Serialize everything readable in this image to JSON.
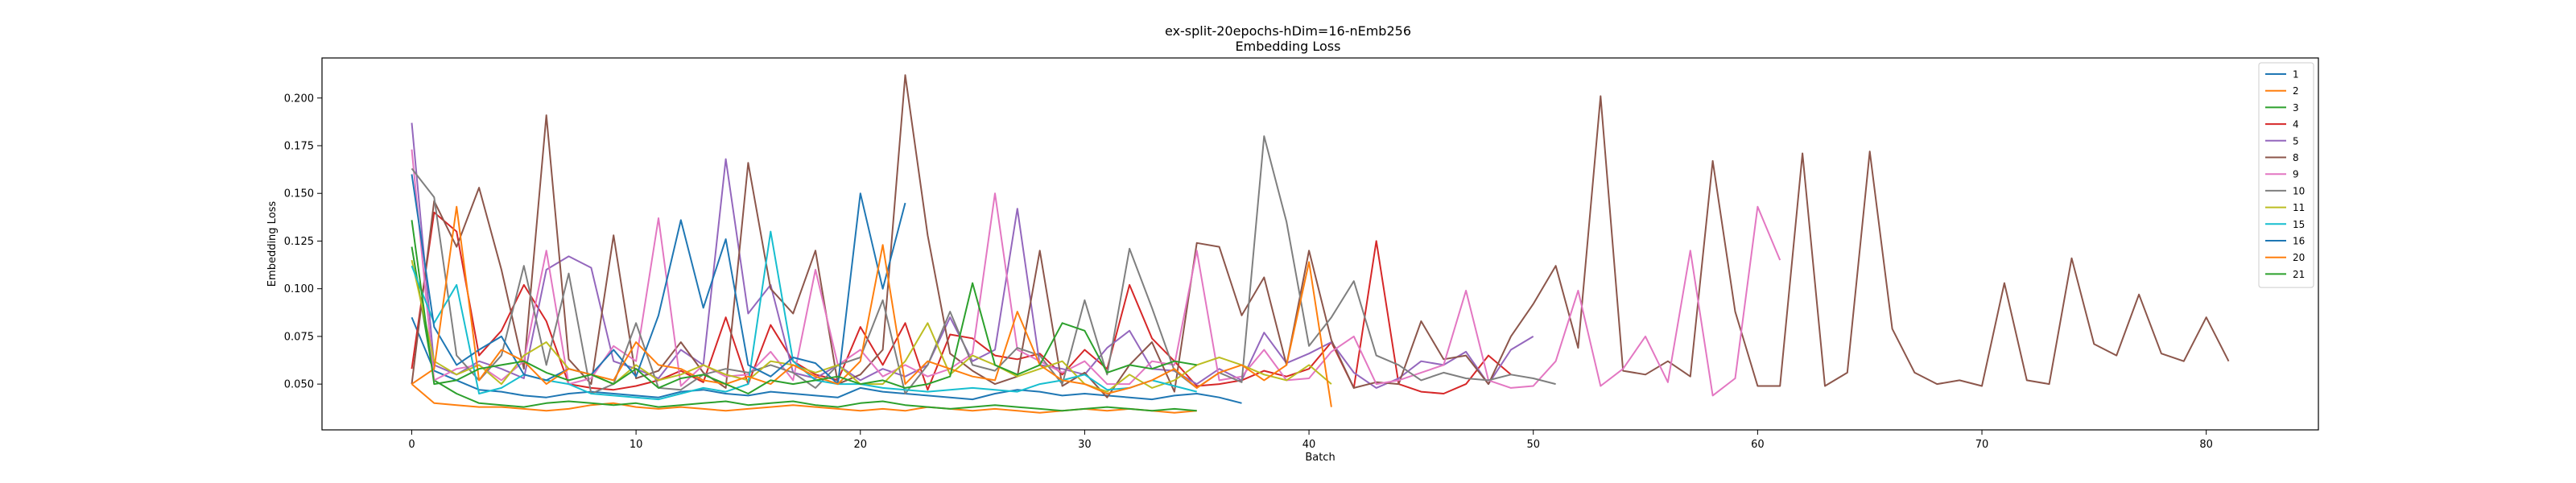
{
  "chart_data": {
    "type": "line",
    "title": "ex-split-20epochs-hDim=16-nEmb256",
    "subtitle": "Embedding Loss",
    "xlabel": "Batch",
    "ylabel": "Embedding Loss",
    "xlim": [
      -4,
      85
    ],
    "ylim": [
      0.026,
      0.221
    ],
    "xticks": [
      "0",
      "10",
      "20",
      "30",
      "40",
      "50",
      "60",
      "70",
      "80"
    ],
    "yticks": [
      "0.050",
      "0.075",
      "0.100",
      "0.125",
      "0.150",
      "0.175",
      "0.200"
    ],
    "grid": false,
    "legend_position": "top-right",
    "series": [
      {
        "name": "1",
        "color": "#1f77b4",
        "values": [
          0.085,
          0.057,
          0.052,
          0.047,
          0.046,
          0.044,
          0.043,
          0.045,
          0.046,
          0.045,
          0.044,
          0.043,
          0.046,
          0.047,
          0.045,
          0.044,
          0.046,
          0.045,
          0.044,
          0.043,
          0.048,
          0.046,
          0.045,
          0.044,
          0.043,
          0.042,
          0.045,
          0.047,
          0.046,
          0.044,
          0.045,
          0.044,
          0.043,
          0.042,
          0.044,
          0.045,
          0.043,
          0.04
        ]
      },
      {
        "name": "2",
        "color": "#ff7f0e",
        "values": [
          0.05,
          0.04,
          0.039,
          0.038,
          0.038,
          0.037,
          0.036,
          0.037,
          0.039,
          0.04,
          0.038,
          0.037,
          0.038,
          0.037,
          0.036,
          0.037,
          0.038,
          0.039,
          0.038,
          0.037,
          0.036,
          0.037,
          0.036,
          0.038,
          0.037,
          0.036,
          0.037,
          0.036,
          0.035,
          0.036,
          0.037,
          0.036,
          0.037,
          0.036,
          0.035,
          0.036
        ]
      },
      {
        "name": "3",
        "color": "#2ca02c",
        "values": [
          0.122,
          0.052,
          0.045,
          0.04,
          0.039,
          0.038,
          0.04,
          0.041,
          0.04,
          0.039,
          0.04,
          0.038,
          0.039,
          0.04,
          0.041,
          0.039,
          0.04,
          0.041,
          0.039,
          0.038,
          0.04,
          0.041,
          0.039,
          0.038,
          0.037,
          0.038,
          0.039,
          0.038,
          0.037,
          0.036,
          0.037,
          0.038,
          0.037,
          0.036,
          0.037,
          0.036
        ]
      },
      {
        "name": "4",
        "color": "#d62728",
        "values": [
          0.058,
          0.14,
          0.13,
          0.065,
          0.078,
          0.102,
          0.083,
          0.05,
          0.048,
          0.047,
          0.049,
          0.052,
          0.057,
          0.051,
          0.085,
          0.05,
          0.081,
          0.062,
          0.055,
          0.052,
          0.08,
          0.06,
          0.082,
          0.047,
          0.076,
          0.074,
          0.065,
          0.063,
          0.066,
          0.055,
          0.068,
          0.058,
          0.102,
          0.074,
          0.062,
          0.049,
          0.05,
          0.052,
          0.057,
          0.054,
          0.058,
          0.072,
          0.048,
          0.125,
          0.05,
          0.046,
          0.045,
          0.05,
          0.065,
          0.055
        ]
      },
      {
        "name": "5",
        "color": "#9467bd",
        "values": [
          0.187,
          0.06,
          0.055,
          0.062,
          0.058,
          0.053,
          0.11,
          0.117,
          0.111,
          0.062,
          0.058,
          0.053,
          0.068,
          0.06,
          0.168,
          0.087,
          0.102,
          0.056,
          0.053,
          0.06,
          0.052,
          0.058,
          0.054,
          0.06,
          0.085,
          0.062,
          0.068,
          0.142,
          0.06,
          0.058,
          0.055,
          0.069,
          0.078,
          0.058,
          0.057,
          0.05,
          0.058,
          0.052,
          0.077,
          0.061,
          0.066,
          0.072,
          0.056,
          0.048,
          0.053,
          0.062,
          0.06,
          0.067,
          0.05,
          0.068,
          0.075
        ]
      },
      {
        "name": "8",
        "color": "#8c564b",
        "values": [
          0.05,
          0.146,
          0.122,
          0.153,
          0.11,
          0.058,
          0.191,
          0.063,
          0.05,
          0.128,
          0.053,
          0.057,
          0.072,
          0.056,
          0.048,
          0.166,
          0.1,
          0.087,
          0.12,
          0.05,
          0.055,
          0.068,
          0.212,
          0.128,
          0.066,
          0.057,
          0.05,
          0.054,
          0.12,
          0.049,
          0.056,
          0.043,
          0.06,
          0.072,
          0.046,
          0.124,
          0.122,
          0.086,
          0.106,
          0.06,
          0.12,
          0.073,
          0.048,
          0.051,
          0.05,
          0.083,
          0.063,
          0.065,
          0.05,
          0.075,
          0.092,
          0.112,
          0.069,
          0.201,
          0.057,
          0.055,
          0.062,
          0.054,
          0.167,
          0.088,
          0.049,
          0.049,
          0.171,
          0.049,
          0.056,
          0.172,
          0.079,
          0.056,
          0.05,
          0.052,
          0.049,
          0.103,
          0.052,
          0.05,
          0.116,
          0.071,
          0.065,
          0.097,
          0.066,
          0.062,
          0.085,
          0.062
        ]
      },
      {
        "name": "9",
        "color": "#e377c2",
        "values": [
          0.173,
          0.052,
          0.058,
          0.06,
          0.052,
          0.062,
          0.12,
          0.05,
          0.053,
          0.07,
          0.062,
          0.137,
          0.049,
          0.06,
          0.054,
          0.055,
          0.067,
          0.052,
          0.11,
          0.06,
          0.068,
          0.054,
          0.06,
          0.054,
          0.058,
          0.066,
          0.15,
          0.068,
          0.062,
          0.056,
          0.062,
          0.05,
          0.05,
          0.062,
          0.06,
          0.12,
          0.052,
          0.054,
          0.068,
          0.052,
          0.053,
          0.067,
          0.075,
          0.05,
          0.052,
          0.056,
          0.06,
          0.099,
          0.052,
          0.048,
          0.049,
          0.062,
          0.099,
          0.049,
          0.058,
          0.075,
          0.051,
          0.12,
          0.044,
          0.053,
          0.143,
          0.115
        ]
      },
      {
        "name": "10",
        "color": "#7f7f7f",
        "values": [
          0.163,
          0.148,
          0.065,
          0.052,
          0.065,
          0.112,
          0.06,
          0.108,
          0.045,
          0.05,
          0.082,
          0.048,
          0.047,
          0.055,
          0.058,
          0.056,
          0.06,
          0.056,
          0.048,
          0.06,
          0.064,
          0.094,
          0.045,
          0.06,
          0.088,
          0.06,
          0.057,
          0.069,
          0.065,
          0.05,
          0.094,
          0.055,
          0.121,
          0.09,
          0.057,
          0.048,
          0.056,
          0.051,
          0.18,
          0.135,
          0.07,
          0.085,
          0.104,
          0.065,
          0.06,
          0.052,
          0.056,
          0.053,
          0.052,
          0.055,
          0.053,
          0.05
        ]
      },
      {
        "name": "11",
        "color": "#bcbd22",
        "values": [
          0.115,
          0.062,
          0.055,
          0.06,
          0.05,
          0.065,
          0.072,
          0.058,
          0.055,
          0.05,
          0.06,
          0.052,
          0.055,
          0.06,
          0.055,
          0.052,
          0.062,
          0.06,
          0.056,
          0.06,
          0.05,
          0.05,
          0.062,
          0.082,
          0.055,
          0.065,
          0.06,
          0.054,
          0.058,
          0.062,
          0.05,
          0.046,
          0.055,
          0.048,
          0.052,
          0.06,
          0.064,
          0.06,
          0.055,
          0.052,
          0.06,
          0.05
        ]
      },
      {
        "name": "15",
        "color": "#17becf",
        "values": [
          0.112,
          0.082,
          0.102,
          0.045,
          0.048,
          0.055,
          0.052,
          0.05,
          0.045,
          0.044,
          0.043,
          0.042,
          0.045,
          0.048,
          0.046,
          0.05,
          0.13,
          0.062,
          0.052,
          0.05,
          0.05,
          0.048,
          0.047,
          0.046,
          0.047,
          0.048,
          0.047,
          0.046,
          0.05,
          0.052,
          0.055,
          0.047,
          0.048,
          0.052,
          0.049,
          0.046
        ]
      },
      {
        "name": "16",
        "color": "#1f77b4",
        "values": [
          0.16,
          0.08,
          0.06,
          0.068,
          0.075,
          0.055,
          0.052,
          0.058,
          0.055,
          0.068,
          0.054,
          0.086,
          0.136,
          0.09,
          0.126,
          0.06,
          0.054,
          0.064,
          0.061,
          0.05,
          0.15,
          0.1,
          0.145
        ]
      },
      {
        "name": "20",
        "color": "#ff7f0e",
        "values": [
          0.05,
          0.058,
          0.143,
          0.052,
          0.068,
          0.062,
          0.05,
          0.058,
          0.055,
          0.052,
          0.072,
          0.06,
          0.058,
          0.052,
          0.05,
          0.054,
          0.05,
          0.06,
          0.054,
          0.05,
          0.062,
          0.123,
          0.05,
          0.062,
          0.058,
          0.054,
          0.052,
          0.088,
          0.06,
          0.052,
          0.05,
          0.045,
          0.048,
          0.052,
          0.058,
          0.048,
          0.056,
          0.06,
          0.052,
          0.06,
          0.114,
          0.038
        ]
      },
      {
        "name": "21",
        "color": "#2ca02c",
        "values": [
          0.136,
          0.05,
          0.052,
          0.058,
          0.06,
          0.062,
          0.056,
          0.052,
          0.055,
          0.05,
          0.058,
          0.048,
          0.053,
          0.055,
          0.05,
          0.045,
          0.052,
          0.05,
          0.052,
          0.054,
          0.05,
          0.052,
          0.048,
          0.05,
          0.054,
          0.103,
          0.06,
          0.055,
          0.06,
          0.082,
          0.078,
          0.056,
          0.06,
          0.058,
          0.062,
          0.06
        ]
      }
    ]
  }
}
